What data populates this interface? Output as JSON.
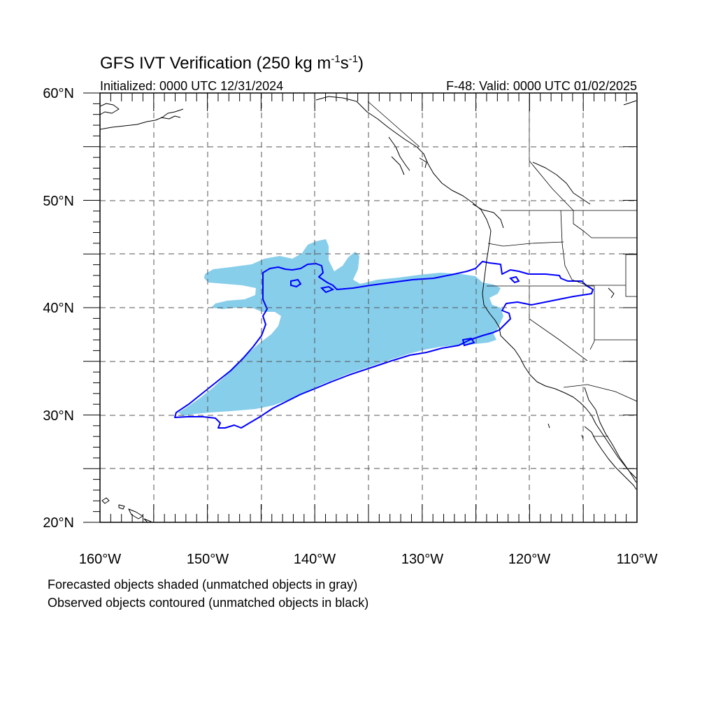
{
  "figure": {
    "title_main": "GFS IVT Verification (250 kg m",
    "title_exp1": "-1",
    "title_mid": "s",
    "title_exp2": "-1",
    "title_close": ")",
    "init_text": "Initialized: 0000 UTC 12/31/2024",
    "valid_text": "F-48: Valid: 0000 UTC 01/02/2025",
    "caption_forecast": "Forecasted objects shaded (unmatched objects in gray)",
    "caption_observed": "Observed objects contoured (unmatched objects in black)"
  },
  "map_data": {
    "projection": "cylindrical-equidistant",
    "lon_range": [
      -160,
      -110
    ],
    "lat_range": [
      20,
      60
    ],
    "lon_ticks": [
      -160,
      -150,
      -140,
      -130,
      -120,
      -110
    ],
    "lat_ticks": [
      20,
      30,
      40,
      50,
      60
    ],
    "lon_tick_labels": [
      "160°W",
      "150°W",
      "140°W",
      "130°W",
      "120°W",
      "110°W"
    ],
    "lat_tick_labels": [
      "20°N",
      "30°N",
      "40°N",
      "50°N",
      "60°N"
    ],
    "gridline_interval_deg": 5,
    "gridlines": "dashed",
    "colors": {
      "forecast_fill": "#87ceeb",
      "observed_contour": "#0000ff",
      "coastline": "#000000",
      "gridline": "#555555"
    }
  }
}
